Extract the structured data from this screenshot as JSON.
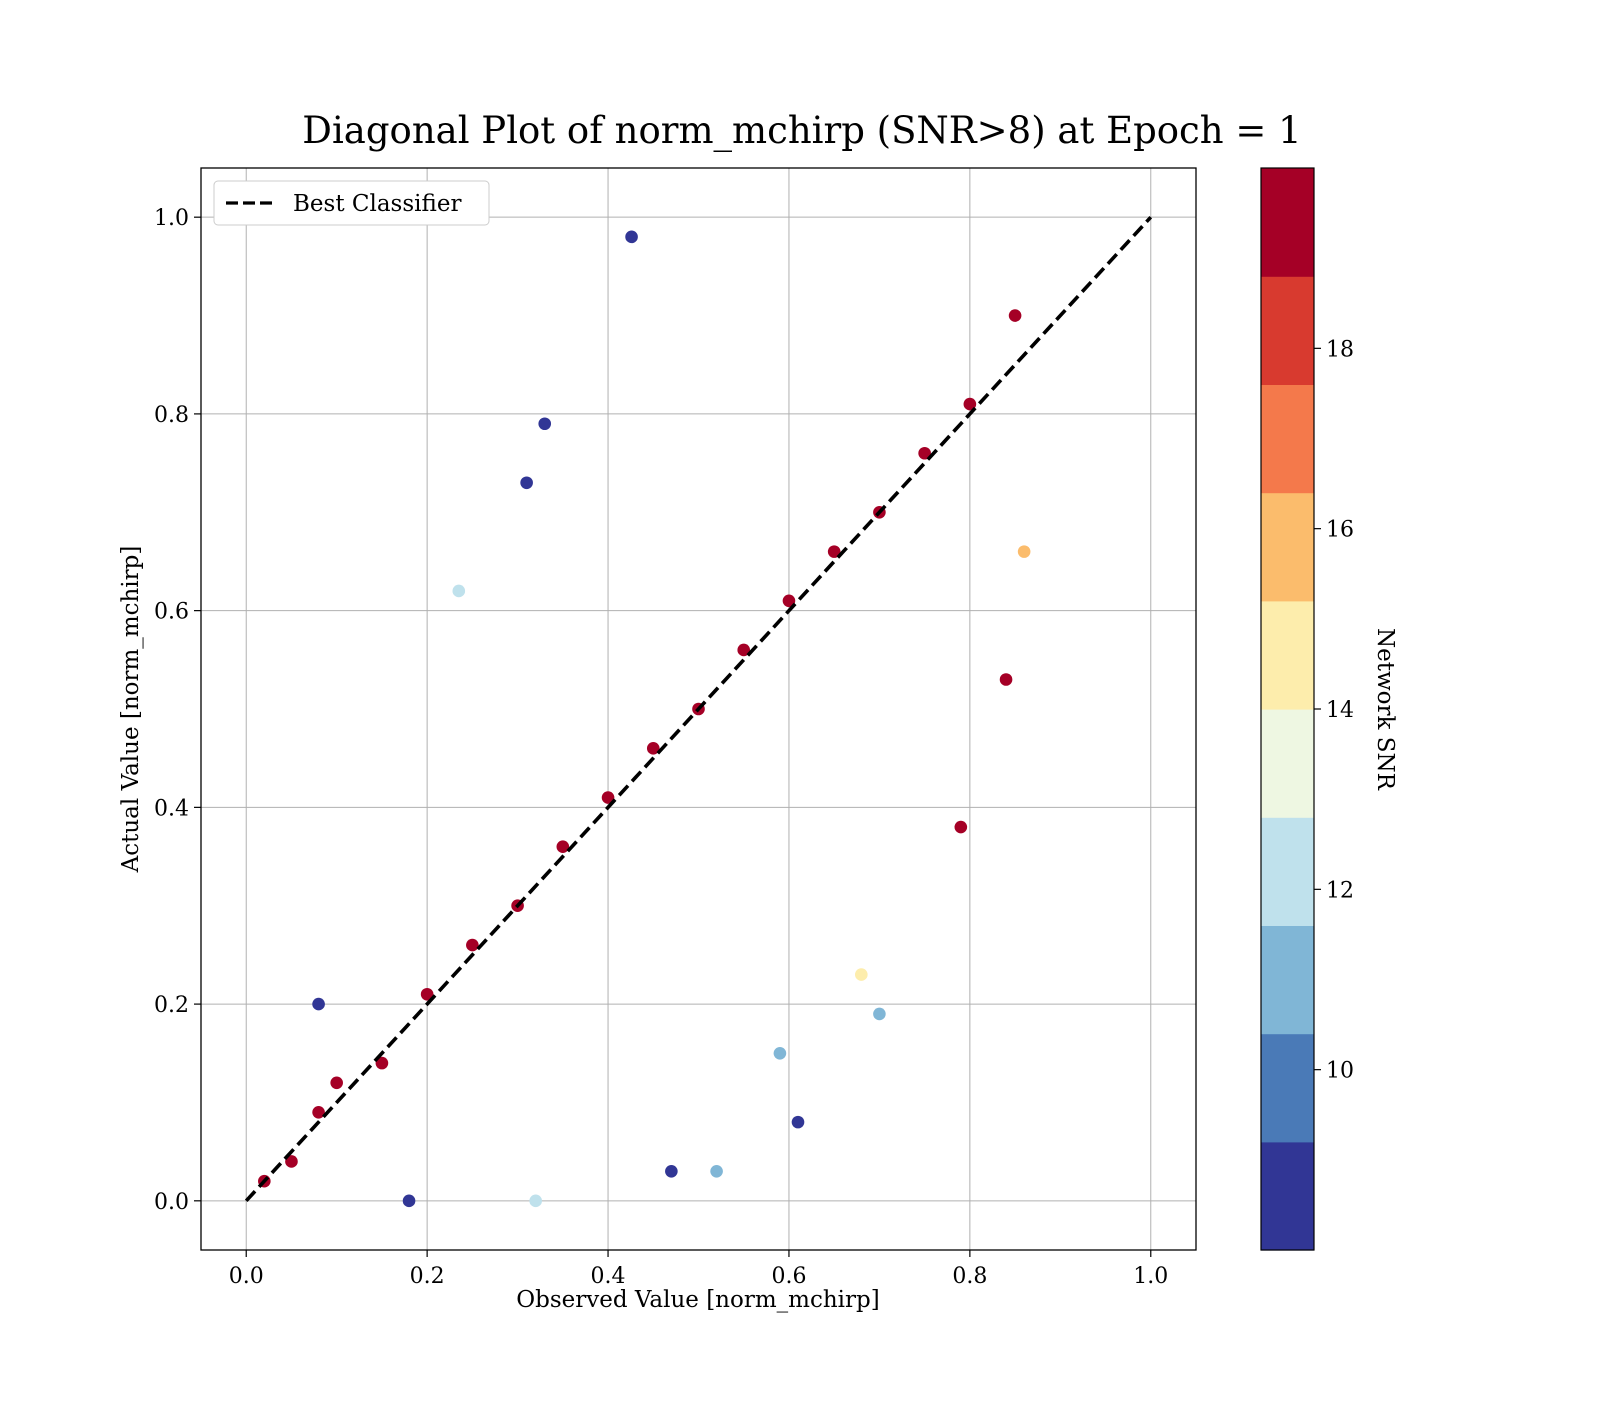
{
  "chart_data": {
    "type": "scatter",
    "title": "Diagonal Plot of norm_mchirp (SNR>8) at Epoch = 1",
    "xlabel": "Observed Value [norm_mchirp]",
    "ylabel": "Actual Value [norm_mchirp]",
    "xlim": [
      -0.05,
      1.05
    ],
    "ylim": [
      -0.05,
      1.05
    ],
    "x_ticks": [
      "0.0",
      "0.2",
      "0.4",
      "0.6",
      "0.8",
      "1.0"
    ],
    "y_ticks": [
      "0.0",
      "0.2",
      "0.4",
      "0.6",
      "0.8",
      "1.0"
    ],
    "grid": true,
    "legend": {
      "position": "upper-left",
      "entries": [
        "Best Classifier"
      ]
    },
    "reference_line": {
      "name": "Best Classifier",
      "style": "dashed",
      "color": "#000000",
      "x": [
        0.0,
        1.0
      ],
      "y": [
        0.0,
        1.0
      ]
    },
    "colorbar": {
      "label": "Network SNR",
      "ticks": [
        "10",
        "12",
        "14",
        "16",
        "18"
      ],
      "range": [
        8,
        20
      ],
      "boundaries": [
        8,
        9.2,
        10.4,
        11.6,
        12.8,
        14,
        15.2,
        16.4,
        17.6,
        18.8,
        20
      ],
      "colors": [
        "#313695",
        "#4a7ab7",
        "#80b6d6",
        "#bfe1ec",
        "#eef7e2",
        "#fdedac",
        "#fbbc6c",
        "#f4794b",
        "#d83a2f",
        "#a50026"
      ]
    },
    "series": [
      {
        "description_of_distribution": "dense cloud around y = x, upper points with colormap",
        "points": [
          [
            0.02,
            0.02,
            19.5
          ],
          [
            0.05,
            0.04,
            19.5
          ],
          [
            0.08,
            0.09,
            19.5
          ],
          [
            0.1,
            0.12,
            19.5
          ],
          [
            0.15,
            0.14,
            19.5
          ],
          [
            0.2,
            0.21,
            19.5
          ],
          [
            0.25,
            0.26,
            19.5
          ],
          [
            0.3,
            0.3,
            19.5
          ],
          [
            0.35,
            0.36,
            19.5
          ],
          [
            0.4,
            0.41,
            19.5
          ],
          [
            0.45,
            0.46,
            19.5
          ],
          [
            0.5,
            0.5,
            19.5
          ],
          [
            0.55,
            0.56,
            19.5
          ],
          [
            0.6,
            0.61,
            19.5
          ],
          [
            0.65,
            0.66,
            19.5
          ],
          [
            0.7,
            0.7,
            19.5
          ],
          [
            0.75,
            0.76,
            19.5
          ],
          [
            0.8,
            0.81,
            19.5
          ],
          [
            0.85,
            0.9,
            19.5
          ],
          [
            0.426,
            0.98,
            8.5
          ],
          [
            0.235,
            0.62,
            12
          ],
          [
            0.33,
            0.79,
            8.5
          ],
          [
            0.31,
            0.73,
            8.5
          ],
          [
            0.84,
            0.53,
            19.5
          ],
          [
            0.86,
            0.66,
            16
          ],
          [
            0.79,
            0.38,
            19.5
          ],
          [
            0.68,
            0.23,
            15
          ],
          [
            0.7,
            0.19,
            11
          ],
          [
            0.61,
            0.08,
            8.5
          ],
          [
            0.52,
            0.03,
            11
          ],
          [
            0.59,
            0.15,
            11
          ],
          [
            0.32,
            0.0,
            12
          ],
          [
            0.18,
            0.0,
            8.5
          ],
          [
            0.47,
            0.03,
            8.5
          ],
          [
            0.08,
            0.2,
            8.5
          ]
        ]
      }
    ]
  }
}
